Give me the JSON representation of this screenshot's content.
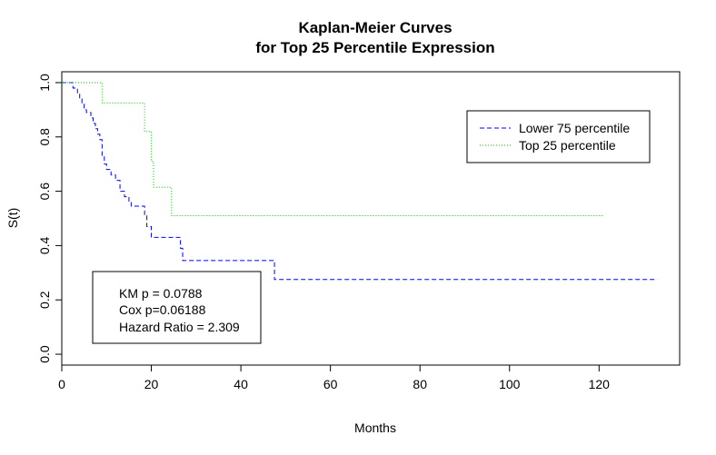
{
  "chart_data": {
    "type": "line",
    "title_line1": "Kaplan-Meier Curves",
    "title_line2": "for Top 25 Percentile Expression",
    "xlabel": "Months",
    "ylabel": "S(t)",
    "xlim": [
      0,
      138
    ],
    "ylim": [
      -0.04,
      1.04
    ],
    "x_ticks": [
      0,
      20,
      40,
      60,
      80,
      100,
      120
    ],
    "y_ticks": [
      0.0,
      0.2,
      0.4,
      0.6,
      0.8,
      1.0
    ],
    "y_tick_labels": [
      "0.0",
      "0.2",
      "0.4",
      "0.6",
      "0.8",
      "1.0"
    ],
    "grid": false,
    "legend_position": "top-right",
    "series": [
      {
        "name": "Lower 75 percentile",
        "color": "#0000ff",
        "dash": "dashed",
        "step_points": [
          [
            0,
            1.0
          ],
          [
            2.5,
            0.98
          ],
          [
            3.5,
            0.96
          ],
          [
            4,
            0.94
          ],
          [
            4.5,
            0.92
          ],
          [
            5,
            0.9
          ],
          [
            5.5,
            0.89
          ],
          [
            6.5,
            0.87
          ],
          [
            7,
            0.85
          ],
          [
            7.5,
            0.83
          ],
          [
            8,
            0.81
          ],
          [
            8.5,
            0.79
          ],
          [
            9,
            0.73
          ],
          [
            9.5,
            0.7
          ],
          [
            10,
            0.68
          ],
          [
            11,
            0.66
          ],
          [
            12,
            0.64
          ],
          [
            13,
            0.6
          ],
          [
            14,
            0.58
          ],
          [
            15,
            0.56
          ],
          [
            15.5,
            0.545
          ],
          [
            18.5,
            0.51
          ],
          [
            19,
            0.47
          ],
          [
            20,
            0.43
          ],
          [
            26.5,
            0.39
          ],
          [
            27,
            0.345
          ],
          [
            47.5,
            0.275
          ],
          [
            133,
            0.275
          ]
        ]
      },
      {
        "name": "Top 25 percentile",
        "color": "#00cc00",
        "dash": "dotted",
        "step_points": [
          [
            0,
            1.0
          ],
          [
            9,
            0.925
          ],
          [
            18.5,
            0.82
          ],
          [
            20,
            0.71
          ],
          [
            20.5,
            0.615
          ],
          [
            24.5,
            0.51
          ],
          [
            121,
            0.51
          ]
        ]
      }
    ],
    "stats": {
      "km_p": "KM p = 0.0788",
      "cox_p": "Cox p=0.06188",
      "hazard_ratio": "Hazard Ratio = 2.309"
    }
  }
}
